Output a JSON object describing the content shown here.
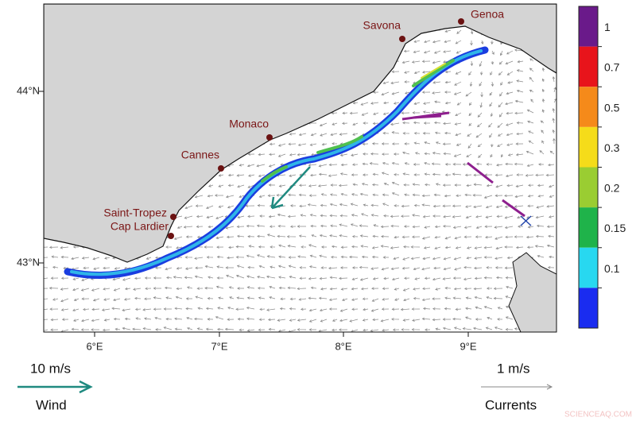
{
  "map": {
    "lon_labels": [
      "6°E",
      "7°E",
      "8°E",
      "9°E"
    ],
    "lat_labels": [
      "44°N",
      "43°N"
    ],
    "places": [
      "Genoa",
      "Savona",
      "Monaco",
      "Cannes",
      "Saint-Tropez",
      "Cap Lardier"
    ],
    "colorbar_labels": [
      "1",
      "0.7",
      "0.5",
      "0.3",
      "0.2",
      "0.15",
      "0.1"
    ]
  },
  "legend": {
    "wind_speed": "10 m/s",
    "wind_label": "Wind",
    "current_speed": "1 m/s",
    "current_label": "Currents"
  },
  "watermark": "SCIENCEAQ.COM"
}
